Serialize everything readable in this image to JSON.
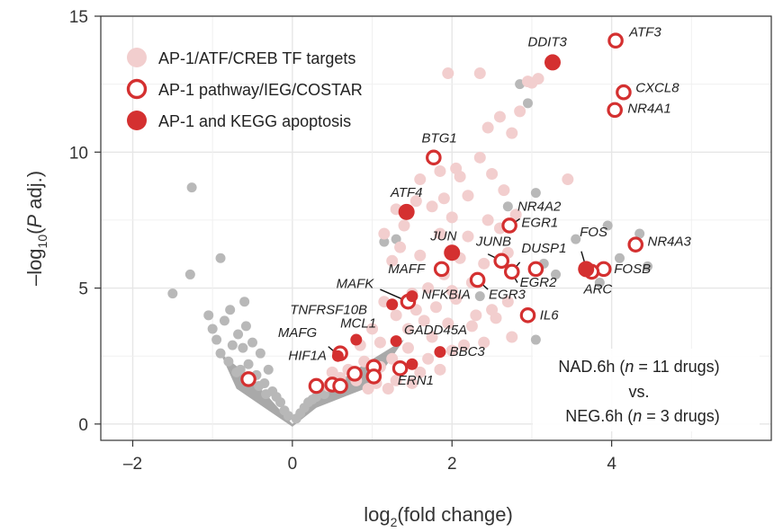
{
  "chart_data": {
    "type": "scatter",
    "xlabel_main": "log",
    "xlabel_sub": "2",
    "xlabel_rest": "(fold change)",
    "ylabel_a": "–log",
    "ylabel_sub": "10",
    "ylabel_b": "(",
    "ylabel_p": "P",
    "ylabel_c": " adj.)",
    "xlim": [
      -2.4,
      6.0
    ],
    "ylim": [
      -0.6,
      15.0
    ],
    "x_ticks": [
      -2,
      0,
      2,
      4
    ],
    "x_tick_labels": [
      "–2",
      "0",
      "2",
      "4"
    ],
    "y_ticks": [
      0,
      5,
      10,
      15
    ],
    "y_tick_labels": [
      "0",
      "5",
      "10",
      "15"
    ],
    "grid": true,
    "legend_position": "top-left",
    "colors": {
      "grey": "#b8b8b8",
      "pink": "#f2cece",
      "red": "#d43030",
      "grid": "#e6e6e6"
    },
    "legend": [
      {
        "label": "AP-1/ATF/CREB TF targets",
        "style": "pink"
      },
      {
        "label": "AP-1 pathway/IEG/COSTAR",
        "style": "ring"
      },
      {
        "label": "AP-1 and KEGG apoptosis",
        "style": "red"
      }
    ],
    "annotation_lines": [
      [
        "NAD.6h (",
        "n",
        " = 11 drugs)"
      ],
      [
        "vs."
      ],
      [
        "NEG.6h (",
        "n",
        " = 3 drugs)"
      ]
    ],
    "series_grey": [
      [
        -1.5,
        4.8
      ],
      [
        -1.26,
        8.7
      ],
      [
        -1.28,
        5.5
      ],
      [
        -1.05,
        4.0
      ],
      [
        -1.0,
        3.5
      ],
      [
        -0.95,
        3.1
      ],
      [
        -0.9,
        2.6
      ],
      [
        -0.85,
        3.8
      ],
      [
        -0.8,
        2.3
      ],
      [
        -0.78,
        4.2
      ],
      [
        -0.7,
        1.9
      ],
      [
        -0.68,
        3.3
      ],
      [
        -0.62,
        2.8
      ],
      [
        -0.6,
        4.5
      ],
      [
        -0.55,
        2.2
      ],
      [
        -0.5,
        3.0
      ],
      [
        -0.45,
        1.8
      ],
      [
        -0.4,
        2.6
      ],
      [
        -0.35,
        1.5
      ],
      [
        -0.3,
        2.0
      ],
      [
        -0.25,
        1.2
      ],
      [
        -0.2,
        1.0
      ],
      [
        -0.15,
        0.8
      ],
      [
        -0.1,
        0.5
      ],
      [
        -0.05,
        0.3
      ],
      [
        -0.9,
        6.1
      ],
      [
        -0.75,
        2.9
      ],
      [
        -0.65,
        2.0
      ],
      [
        -0.58,
        3.6
      ],
      [
        -0.42,
        1.4
      ],
      [
        -0.33,
        1.1
      ],
      [
        0.05,
        0.2
      ],
      [
        0.1,
        0.4
      ],
      [
        0.15,
        0.6
      ],
      [
        0.2,
        0.8
      ],
      [
        0.25,
        0.9
      ],
      [
        0.3,
        1.0
      ],
      [
        0.35,
        1.2
      ],
      [
        0.4,
        1.1
      ],
      [
        2.85,
        12.5
      ],
      [
        2.95,
        11.8
      ],
      [
        3.05,
        8.5
      ],
      [
        3.15,
        5.9
      ],
      [
        3.3,
        5.5
      ],
      [
        3.55,
        6.8
      ],
      [
        3.95,
        7.3
      ],
      [
        4.1,
        6.1
      ],
      [
        4.35,
        7.0
      ],
      [
        4.45,
        5.8
      ],
      [
        3.85,
        5.2
      ],
      [
        2.7,
        8.0
      ],
      [
        1.3,
        6.8
      ],
      [
        1.15,
        6.7
      ],
      [
        2.35,
        4.7
      ],
      [
        3.05,
        3.1
      ]
    ],
    "series_pink": [
      [
        1.95,
        12.9
      ],
      [
        2.35,
        12.9
      ],
      [
        2.95,
        12.6
      ],
      [
        3.0,
        12.55
      ],
      [
        3.08,
        12.7
      ],
      [
        2.85,
        11.5
      ],
      [
        2.45,
        10.9
      ],
      [
        2.6,
        11.3
      ],
      [
        2.75,
        10.7
      ],
      [
        2.35,
        9.8
      ],
      [
        2.05,
        9.4
      ],
      [
        1.85,
        9.3
      ],
      [
        1.6,
        9.0
      ],
      [
        2.1,
        9.1
      ],
      [
        2.5,
        9.2
      ],
      [
        2.65,
        8.6
      ],
      [
        2.2,
        8.4
      ],
      [
        1.9,
        8.3
      ],
      [
        1.55,
        8.2
      ],
      [
        1.75,
        8.0
      ],
      [
        2.0,
        7.6
      ],
      [
        1.3,
        7.9
      ],
      [
        1.4,
        7.3
      ],
      [
        1.85,
        7.0
      ],
      [
        2.2,
        6.9
      ],
      [
        2.45,
        7.5
      ],
      [
        2.6,
        7.2
      ],
      [
        1.15,
        7.0
      ],
      [
        1.35,
        6.5
      ],
      [
        1.6,
        6.2
      ],
      [
        2.1,
        6.1
      ],
      [
        2.4,
        5.9
      ],
      [
        2.7,
        6.3
      ],
      [
        1.25,
        6.0
      ],
      [
        3.45,
        9.0
      ],
      [
        2.8,
        7.7
      ],
      [
        1.9,
        5.5
      ],
      [
        1.7,
        5.0
      ],
      [
        2.0,
        4.9
      ],
      [
        2.25,
        5.2
      ],
      [
        1.5,
        4.8
      ],
      [
        2.5,
        4.2
      ],
      [
        2.7,
        4.5
      ],
      [
        2.05,
        4.6
      ],
      [
        1.8,
        4.3
      ],
      [
        2.25,
        3.6
      ],
      [
        2.55,
        3.9
      ],
      [
        2.75,
        3.2
      ],
      [
        2.4,
        3.0
      ],
      [
        1.55,
        4.2
      ],
      [
        1.65,
        3.8
      ],
      [
        1.95,
        3.7
      ],
      [
        2.15,
        2.9
      ],
      [
        1.3,
        4.0
      ],
      [
        1.0,
        3.5
      ],
      [
        0.85,
        2.9
      ],
      [
        1.1,
        3.0
      ],
      [
        1.25,
        2.4
      ],
      [
        1.45,
        2.8
      ],
      [
        1.7,
        2.4
      ],
      [
        0.7,
        2.0
      ],
      [
        0.9,
        2.3
      ],
      [
        1.1,
        2.1
      ],
      [
        1.35,
        2.0
      ],
      [
        0.6,
        1.7
      ],
      [
        0.8,
        1.6
      ],
      [
        1.05,
        1.5
      ],
      [
        1.3,
        1.6
      ],
      [
        1.6,
        1.9
      ],
      [
        0.45,
        1.4
      ],
      [
        0.5,
        1.9
      ],
      [
        0.95,
        1.3
      ],
      [
        1.2,
        1.3
      ],
      [
        1.5,
        1.5
      ],
      [
        1.85,
        2.0
      ],
      [
        1.75,
        3.2
      ],
      [
        2.0,
        2.7
      ],
      [
        1.45,
        3.5
      ],
      [
        1.15,
        4.5
      ],
      [
        2.3,
        4.0
      ]
    ],
    "series_ring": [
      [
        4.05,
        14.1,
        "ATF3"
      ],
      [
        4.15,
        12.2,
        "CXCL8"
      ],
      [
        4.04,
        11.55,
        "NR4A1"
      ],
      [
        1.77,
        9.8,
        "BTG1"
      ],
      [
        2.72,
        7.3,
        "EGR1"
      ],
      [
        2.62,
        6.0,
        "JUNB"
      ],
      [
        2.75,
        5.6,
        "DUSP1"
      ],
      [
        3.05,
        5.7,
        "EGR2"
      ],
      [
        2.32,
        5.3,
        "EGR3"
      ],
      [
        2.95,
        4.0,
        "IL6"
      ],
      [
        4.3,
        6.6,
        "NR4A3"
      ],
      [
        3.9,
        5.7,
        "FOSB"
      ],
      [
        3.75,
        5.6,
        "ARC"
      ],
      [
        1.87,
        5.7,
        "MAFF"
      ],
      [
        1.45,
        4.5,
        "MAFK"
      ],
      [
        0.6,
        2.6,
        "MAFG"
      ],
      [
        -0.55,
        1.65,
        ""
      ],
      [
        0.3,
        1.4,
        ""
      ],
      [
        0.5,
        1.45,
        ""
      ],
      [
        0.6,
        1.4,
        ""
      ],
      [
        0.78,
        1.85,
        ""
      ],
      [
        1.02,
        2.1,
        ""
      ],
      [
        1.02,
        1.75,
        ""
      ],
      [
        1.35,
        2.05,
        ""
      ]
    ],
    "series_red": [
      [
        3.26,
        13.3,
        "DDIT3"
      ],
      [
        1.43,
        7.8,
        "ATF4"
      ],
      [
        2.0,
        6.3,
        "JUN"
      ],
      [
        3.68,
        5.7,
        "FOS"
      ],
      [
        1.5,
        4.7,
        "NFKBIA"
      ],
      [
        1.25,
        4.4,
        "TNFRSF10B"
      ],
      [
        0.8,
        3.1,
        "MCL1"
      ],
      [
        1.3,
        3.05,
        "GADD45A"
      ],
      [
        1.85,
        2.65,
        "BBC3"
      ],
      [
        1.5,
        2.2,
        "ERN1"
      ],
      [
        0.57,
        2.5,
        "HIF1A"
      ]
    ],
    "labels": [
      {
        "text": "DDIT3",
        "x": 2.95,
        "y": 13.9
      },
      {
        "text": "ATF3",
        "x": 4.22,
        "y": 14.25
      },
      {
        "text": "CXCL8",
        "x": 4.3,
        "y": 12.2
      },
      {
        "text": "NR4A1",
        "x": 4.2,
        "y": 11.45
      },
      {
        "text": "BTG1",
        "x": 1.62,
        "y": 10.35
      },
      {
        "text": "ATF4",
        "x": 1.23,
        "y": 8.35
      },
      {
        "text": "NR4A2",
        "x": 2.82,
        "y": 7.85
      },
      {
        "text": "EGR1",
        "x": 2.87,
        "y": 7.25
      },
      {
        "text": "FOS",
        "x": 3.6,
        "y": 6.9
      },
      {
        "text": "NR4A3",
        "x": 4.45,
        "y": 6.55
      },
      {
        "text": "JUN",
        "x": 1.73,
        "y": 6.75
      },
      {
        "text": "JUNB",
        "x": 2.3,
        "y": 6.55
      },
      {
        "text": "DUSP1",
        "x": 2.87,
        "y": 6.3
      },
      {
        "text": "MAFF",
        "x": 1.2,
        "y": 5.55
      },
      {
        "text": "FOSB",
        "x": 4.03,
        "y": 5.55
      },
      {
        "text": "EGR2",
        "x": 2.85,
        "y": 5.05
      },
      {
        "text": "ARC",
        "x": 3.65,
        "y": 4.8
      },
      {
        "text": "MAFK",
        "x": 0.55,
        "y": 5.0
      },
      {
        "text": "NFKBIA",
        "x": 1.62,
        "y": 4.6
      },
      {
        "text": "EGR3",
        "x": 2.46,
        "y": 4.6
      },
      {
        "text": "TNFRSF10B",
        "x": -0.03,
        "y": 4.05
      },
      {
        "text": "MCL1",
        "x": 0.6,
        "y": 3.55
      },
      {
        "text": "IL6",
        "x": 3.1,
        "y": 3.85
      },
      {
        "text": "GADD45A",
        "x": 1.4,
        "y": 3.3
      },
      {
        "text": "MAFG",
        "x": -0.18,
        "y": 3.2
      },
      {
        "text": "HIF1A",
        "x": -0.05,
        "y": 2.35
      },
      {
        "text": "BBC3",
        "x": 1.97,
        "y": 2.5
      },
      {
        "text": "ERN1",
        "x": 1.32,
        "y": 1.45
      }
    ],
    "leader_lines": [
      [
        1.1,
        4.95,
        1.45,
        4.5
      ],
      [
        2.85,
        7.55,
        2.73,
        7.3
      ],
      [
        2.85,
        5.95,
        2.75,
        5.6
      ],
      [
        2.45,
        6.25,
        2.62,
        6.0
      ],
      [
        2.82,
        5.2,
        2.75,
        5.55
      ],
      [
        2.45,
        4.95,
        2.32,
        5.3
      ],
      [
        3.62,
        6.35,
        3.68,
        5.75
      ],
      [
        0.45,
        2.85,
        0.57,
        2.55
      ]
    ]
  }
}
